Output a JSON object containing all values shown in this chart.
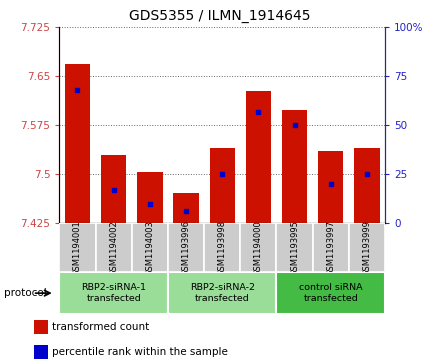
{
  "title": "GDS5355 / ILMN_1914645",
  "samples": [
    "GSM1194001",
    "GSM1194002",
    "GSM1194003",
    "GSM1193996",
    "GSM1193998",
    "GSM1194000",
    "GSM1193995",
    "GSM1193997",
    "GSM1193999"
  ],
  "groups": [
    {
      "label": "RBP2-siRNA-1\ntransfected",
      "indices": [
        0,
        1,
        2
      ]
    },
    {
      "label": "RBP2-siRNA-2\ntransfected",
      "indices": [
        3,
        4,
        5
      ]
    },
    {
      "label": "control siRNA\ntransfected",
      "indices": [
        6,
        7,
        8
      ]
    }
  ],
  "bar_values": [
    7.668,
    7.53,
    7.503,
    7.472,
    7.54,
    7.628,
    7.598,
    7.535,
    7.54
  ],
  "percentile_values": [
    68,
    17,
    10,
    6,
    25,
    57,
    50,
    20,
    25
  ],
  "y_min": 7.425,
  "y_max": 7.725,
  "y_ticks": [
    7.425,
    7.5,
    7.575,
    7.65,
    7.725
  ],
  "right_y_ticks": [
    0,
    25,
    50,
    75,
    100
  ],
  "bar_color": "#cc1100",
  "marker_color": "#0000cc",
  "bar_width": 0.7,
  "left_tick_color": "#cc4444",
  "right_tick_color": "#2222cc",
  "grid_color": "#666666",
  "sample_bg_color": "#cccccc",
  "group_bg_colors": [
    "#99dd99",
    "#99dd99",
    "#44bb44"
  ],
  "legend_items": [
    {
      "color": "#cc1100",
      "label": "transformed count"
    },
    {
      "color": "#0000cc",
      "label": "percentile rank within the sample"
    }
  ],
  "protocol_label": "protocol"
}
